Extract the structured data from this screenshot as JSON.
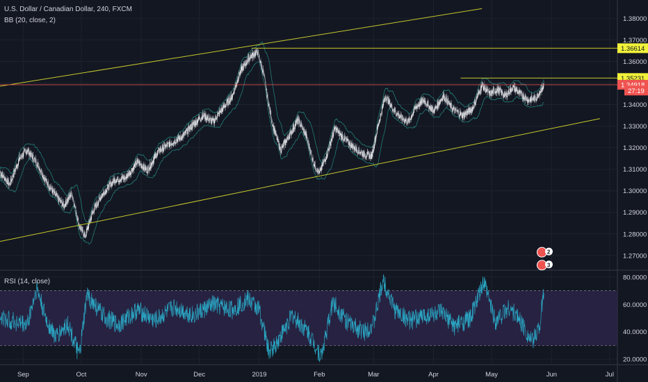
{
  "header": {
    "symbol_title": "U.S. Dollar / Canadian Dollar, 240, FXCM",
    "indicator_bb": "BB (20, close, 2)",
    "indicator_rsi": "RSI (14, close)"
  },
  "colors": {
    "background": "#131722",
    "grid": "#1e222d",
    "text": "#d1d4dc",
    "trendline": "#c7c92a",
    "bb_band": "#26a69a",
    "price_candle_up": "#ffffff",
    "price_candle_down": "#b2b5be",
    "current_price": "#ef5350",
    "rsi_line": "#2aa7c4",
    "rsi_zone": "#2c2546"
  },
  "chart_data": [
    {
      "type": "line",
      "name": "price-pane",
      "y_ticks": [
        "1.38000",
        "1.37000",
        "1.36000",
        "1.35000",
        "1.34000",
        "1.33000",
        "1.32000",
        "1.31000",
        "1.30000",
        "1.29000",
        "1.28000",
        "1.27000"
      ],
      "ylim": [
        1.2635,
        1.3885
      ],
      "price_path": [
        [
          "2018-08-20",
          1.3085
        ],
        [
          "2018-08-25",
          1.303
        ],
        [
          "2018-08-30",
          1.315
        ],
        [
          "2018-09-03",
          1.319
        ],
        [
          "2018-09-08",
          1.313
        ],
        [
          "2018-09-13",
          1.304
        ],
        [
          "2018-09-18",
          1.2975
        ],
        [
          "2018-09-22",
          1.293
        ],
        [
          "2018-09-26",
          1.299
        ],
        [
          "2018-09-30",
          1.2835
        ],
        [
          "2018-10-03",
          1.279
        ],
        [
          "2018-10-07",
          1.2905
        ],
        [
          "2018-10-12",
          1.2985
        ],
        [
          "2018-10-18",
          1.305
        ],
        [
          "2018-10-24",
          1.306
        ],
        [
          "2018-10-30",
          1.3135
        ],
        [
          "2018-11-04",
          1.3095
        ],
        [
          "2018-11-10",
          1.3185
        ],
        [
          "2018-11-16",
          1.322
        ],
        [
          "2018-11-22",
          1.325
        ],
        [
          "2018-11-28",
          1.331
        ],
        [
          "2018-12-03",
          1.335
        ],
        [
          "2018-12-08",
          1.332
        ],
        [
          "2018-12-13",
          1.338
        ],
        [
          "2018-12-18",
          1.344
        ],
        [
          "2018-12-22",
          1.355
        ],
        [
          "2018-12-27",
          1.362
        ],
        [
          "2018-12-31",
          1.3645
        ],
        [
          "2019-01-03",
          1.355
        ],
        [
          "2019-01-05",
          1.344
        ],
        [
          "2019-01-08",
          1.33
        ],
        [
          "2019-01-12",
          1.319
        ],
        [
          "2019-01-16",
          1.325
        ],
        [
          "2019-01-21",
          1.333
        ],
        [
          "2019-01-25",
          1.326
        ],
        [
          "2019-01-29",
          1.313
        ],
        [
          "2019-02-01",
          1.308
        ],
        [
          "2019-02-05",
          1.317
        ],
        [
          "2019-02-09",
          1.329
        ],
        [
          "2019-02-14",
          1.324
        ],
        [
          "2019-02-19",
          1.32
        ],
        [
          "2019-02-24",
          1.317
        ],
        [
          "2019-02-28",
          1.316
        ],
        [
          "2019-03-03",
          1.329
        ],
        [
          "2019-03-07",
          1.344
        ],
        [
          "2019-03-11",
          1.338
        ],
        [
          "2019-03-15",
          1.334
        ],
        [
          "2019-03-19",
          1.332
        ],
        [
          "2019-03-23",
          1.339
        ],
        [
          "2019-03-27",
          1.342
        ],
        [
          "2019-04-01",
          1.337
        ],
        [
          "2019-04-06",
          1.344
        ],
        [
          "2019-04-11",
          1.338
        ],
        [
          "2019-04-16",
          1.335
        ],
        [
          "2019-04-21",
          1.338
        ],
        [
          "2019-04-26",
          1.349
        ],
        [
          "2019-04-30",
          1.345
        ],
        [
          "2019-05-04",
          1.347
        ],
        [
          "2019-05-08",
          1.344
        ],
        [
          "2019-05-12",
          1.348
        ],
        [
          "2019-05-16",
          1.345
        ],
        [
          "2019-05-20",
          1.342
        ],
        [
          "2019-05-24",
          1.343
        ],
        [
          "2019-05-28",
          1.3492
        ]
      ],
      "trendlines": [
        {
          "name": "upper-channel",
          "from": [
            "2018-08-20",
            1.3485
          ],
          "to": [
            "2019-04-26",
            1.3845
          ]
        },
        {
          "name": "lower-channel",
          "from": [
            "2018-08-20",
            1.2765
          ],
          "to": [
            "2019-06-26",
            1.3335
          ]
        },
        {
          "name": "resistance-1-36614",
          "from": [
            "2018-12-28",
            1.36614
          ],
          "to": [
            "2019-07-05",
            1.36614
          ]
        },
        {
          "name": "resistance-1-35231",
          "from": [
            "2019-04-15",
            1.35231
          ],
          "to": [
            "2019-07-05",
            1.35231
          ]
        },
        {
          "name": "current-price",
          "from": [
            "2018-08-20",
            1.34918
          ],
          "to": [
            "2019-07-05",
            1.34918
          ]
        }
      ],
      "price_labels": [
        {
          "text": "1.36614",
          "price": 1.36614,
          "style": "yellow"
        },
        {
          "text": "1.35231",
          "price": 1.35231,
          "style": "yellow"
        },
        {
          "text": "1.34918",
          "price": 1.34918,
          "style": "red"
        },
        {
          "text": "27:19",
          "price": 1.3465,
          "style": "red"
        }
      ],
      "event_badges": [
        {
          "text": "2",
          "date": "2019-05-27",
          "price": 1.2715
        },
        {
          "text": "3",
          "date": "2019-05-27",
          "price": 1.2655
        }
      ]
    },
    {
      "type": "line",
      "name": "rsi-pane",
      "y_ticks": [
        "80.0000",
        "60.0000",
        "40.0000",
        "20.0000"
      ],
      "ylim": [
        16,
        84.5
      ],
      "overbought": 70,
      "oversold": 30,
      "rsi_path": [
        [
          "2018-08-20",
          50
        ],
        [
          "2018-09-03",
          45
        ],
        [
          "2018-09-08",
          72
        ],
        [
          "2018-09-13",
          48
        ],
        [
          "2018-09-18",
          36
        ],
        [
          "2018-09-24",
          46
        ],
        [
          "2018-09-30",
          22
        ],
        [
          "2018-10-04",
          67
        ],
        [
          "2018-10-12",
          52
        ],
        [
          "2018-10-20",
          45
        ],
        [
          "2018-10-30",
          56
        ],
        [
          "2018-11-08",
          48
        ],
        [
          "2018-11-18",
          58
        ],
        [
          "2018-11-28",
          52
        ],
        [
          "2018-12-08",
          60
        ],
        [
          "2018-12-18",
          56
        ],
        [
          "2018-12-26",
          64
        ],
        [
          "2019-01-01",
          56
        ],
        [
          "2019-01-06",
          25
        ],
        [
          "2019-01-10",
          32
        ],
        [
          "2019-01-18",
          52
        ],
        [
          "2019-01-26",
          40
        ],
        [
          "2019-02-02",
          22
        ],
        [
          "2019-02-08",
          62
        ],
        [
          "2019-02-16",
          46
        ],
        [
          "2019-02-24",
          40
        ],
        [
          "2019-03-01",
          46
        ],
        [
          "2019-03-06",
          78
        ],
        [
          "2019-03-12",
          56
        ],
        [
          "2019-03-20",
          48
        ],
        [
          "2019-03-28",
          52
        ],
        [
          "2019-04-05",
          54
        ],
        [
          "2019-04-12",
          44
        ],
        [
          "2019-04-20",
          50
        ],
        [
          "2019-04-27",
          76
        ],
        [
          "2019-05-03",
          48
        ],
        [
          "2019-05-10",
          58
        ],
        [
          "2019-05-16",
          48
        ],
        [
          "2019-05-22",
          32
        ],
        [
          "2019-05-26",
          46
        ],
        [
          "2019-05-28",
          70
        ]
      ]
    }
  ],
  "x_axis": {
    "ticks": [
      {
        "label": "Sep",
        "date": "2018-09-01"
      },
      {
        "label": "Oct",
        "date": "2018-10-01"
      },
      {
        "label": "Nov",
        "date": "2018-11-01"
      },
      {
        "label": "Dec",
        "date": "2018-12-01"
      },
      {
        "label": "2019",
        "date": "2019-01-01"
      },
      {
        "label": "Feb",
        "date": "2019-02-01"
      },
      {
        "label": "Mar",
        "date": "2019-03-01"
      },
      {
        "label": "Apr",
        "date": "2019-04-01"
      },
      {
        "label": "May",
        "date": "2019-05-01"
      },
      {
        "label": "Jun",
        "date": "2019-06-01"
      },
      {
        "label": "Jul",
        "date": "2019-07-01"
      }
    ]
  }
}
